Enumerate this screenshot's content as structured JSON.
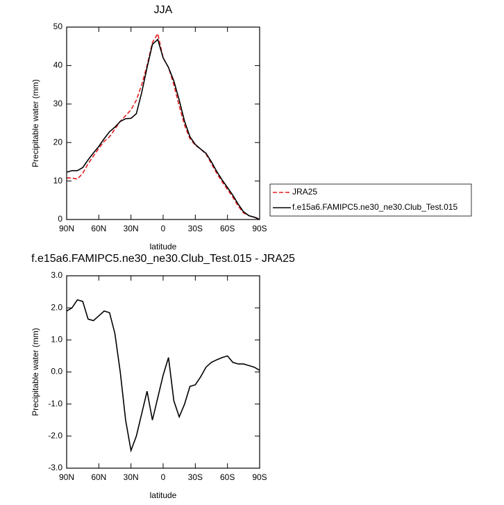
{
  "chart_data": [
    {
      "type": "line",
      "title": "JJA",
      "xlabel": "latitude",
      "ylabel": "Precipitable water (mm)",
      "x": [
        90,
        85,
        80,
        75,
        70,
        65,
        60,
        55,
        50,
        45,
        40,
        35,
        30,
        25,
        20,
        15,
        10,
        5,
        0,
        -5,
        -10,
        -15,
        -20,
        -25,
        -30,
        -35,
        -40,
        -45,
        -50,
        -55,
        -60,
        -65,
        -70,
        -75,
        -80,
        -85,
        -90
      ],
      "series": [
        {
          "name": "JRA25",
          "color": "#e41a1c",
          "line_style": "dashed",
          "values": [
            10.8,
            10.8,
            10.5,
            12,
            14.5,
            16.5,
            18.5,
            20.3,
            21.5,
            23.5,
            25.5,
            27,
            28.5,
            31,
            35,
            40,
            46,
            48.3,
            42,
            39.5,
            35,
            29.5,
            24.5,
            21,
            19.3,
            18.3,
            17,
            14.5,
            12,
            9.8,
            7.8,
            5.8,
            3.5,
            1.7,
            1,
            0.6,
            0.2
          ]
        },
        {
          "name": "f.e15a6.FAMIPC5.ne30_ne30.Club_Test.015",
          "color": "#000000",
          "line_style": "solid",
          "values": [
            12.3,
            12.7,
            12.7,
            13.5,
            15.5,
            17.3,
            19,
            21,
            22.8,
            24,
            25.5,
            26.2,
            26.3,
            27.5,
            33,
            39.5,
            45.5,
            46.8,
            42,
            39.5,
            36,
            31,
            25.5,
            21.5,
            19.5,
            18.3,
            17.2,
            15,
            12.5,
            10.3,
            8.3,
            6.3,
            4,
            2,
            1,
            0.6,
            0
          ]
        }
      ],
      "xlim": [
        90,
        -90
      ],
      "xticks": [
        {
          "value": 90,
          "label": "90N"
        },
        {
          "value": 60,
          "label": "60N"
        },
        {
          "value": 30,
          "label": "30N"
        },
        {
          "value": 0,
          "label": "0"
        },
        {
          "value": -30,
          "label": "30S"
        },
        {
          "value": -60,
          "label": "60S"
        },
        {
          "value": -90,
          "label": "90S"
        }
      ],
      "ylim": [
        0,
        50
      ],
      "yticks": [
        0,
        10,
        20,
        30,
        40,
        50
      ],
      "legend": "right"
    },
    {
      "type": "line",
      "title": "f.e15a6.FAMIPC5.ne30_ne30.Club_Test.015 - JRA25",
      "xlabel": "latitude",
      "ylabel": "Precipitable water (mm)",
      "x": [
        90,
        85,
        80,
        75,
        70,
        65,
        60,
        55,
        50,
        45,
        40,
        35,
        30,
        25,
        20,
        15,
        10,
        5,
        0,
        -5,
        -10,
        -15,
        -20,
        -25,
        -30,
        -35,
        -40,
        -45,
        -50,
        -55,
        -60,
        -65,
        -70,
        -75,
        -80,
        -85,
        -90
      ],
      "series": [
        {
          "color": "#000000",
          "line_style": "solid",
          "values": [
            1.9,
            2.0,
            2.25,
            2.2,
            1.65,
            1.6,
            1.75,
            1.9,
            1.85,
            1.2,
            0.0,
            -1.5,
            -2.45,
            -2.0,
            -1.3,
            -0.6,
            -1.5,
            -0.8,
            -0.1,
            0.45,
            -0.9,
            -1.4,
            -1.0,
            -0.45,
            -0.4,
            -0.15,
            0.15,
            0.3,
            0.38,
            0.45,
            0.5,
            0.3,
            0.25,
            0.25,
            0.2,
            0.15,
            0.05
          ]
        }
      ],
      "xlim": [
        90,
        -90
      ],
      "xticks": [
        {
          "value": 90,
          "label": "90N"
        },
        {
          "value": 60,
          "label": "60N"
        },
        {
          "value": 30,
          "label": "30N"
        },
        {
          "value": 0,
          "label": "0"
        },
        {
          "value": -30,
          "label": "30S"
        },
        {
          "value": -60,
          "label": "60S"
        },
        {
          "value": -90,
          "label": "90S"
        }
      ],
      "ylim": [
        -3,
        3
      ],
      "yticks": [
        {
          "value": -3,
          "label": "-3.0"
        },
        {
          "value": -2,
          "label": "-2.0"
        },
        {
          "value": -1,
          "label": "-1.0"
        },
        {
          "value": 0,
          "label": "0.0"
        },
        {
          "value": 1,
          "label": "1.0"
        },
        {
          "value": 2,
          "label": "2.0"
        },
        {
          "value": 3,
          "label": "3.0"
        }
      ]
    }
  ]
}
